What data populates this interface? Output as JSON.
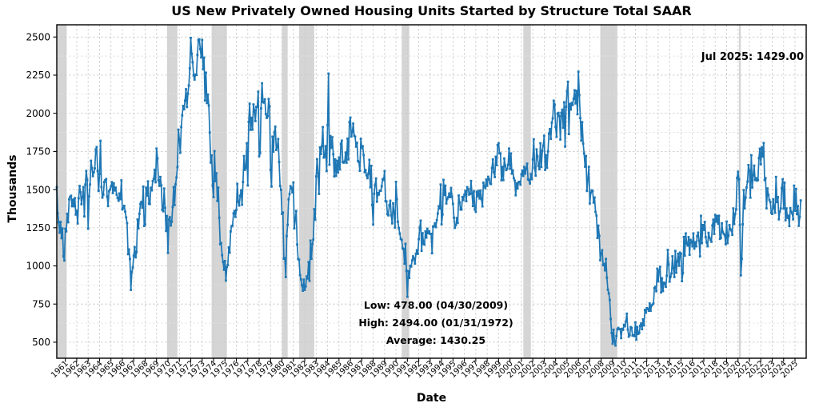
{
  "chart_data": {
    "type": "line",
    "title": "US New Privately Owned Housing Units Started by Structure Total SAAR",
    "xlabel": "Date",
    "ylabel": "Thousands",
    "line_color": "#1f77b4",
    "marker": "square",
    "recession_color": "#d5d5d5",
    "grid": {
      "major_color": "#cccccc",
      "minor_color": "#e2e2e2",
      "horizontal_step": 125,
      "vertical_step_years": 1
    },
    "x_range": [
      1960.25,
      2025.98
    ],
    "y_range": [
      395,
      2580
    ],
    "y_ticks": [
      500,
      750,
      1000,
      1250,
      1500,
      1750,
      2000,
      2250,
      2500
    ],
    "x_tick_years": [
      1961,
      1962,
      1963,
      1964,
      1965,
      1966,
      1967,
      1968,
      1969,
      1970,
      1971,
      1972,
      1973,
      1974,
      1975,
      1976,
      1977,
      1978,
      1979,
      1980,
      1981,
      1982,
      1983,
      1984,
      1985,
      1986,
      1987,
      1988,
      1989,
      1990,
      1991,
      1992,
      1993,
      1994,
      1995,
      1996,
      1997,
      1998,
      1999,
      2000,
      2001,
      2002,
      2003,
      2004,
      2005,
      2006,
      2007,
      2008,
      2009,
      2010,
      2011,
      2012,
      2013,
      2014,
      2015,
      2016,
      2017,
      2018,
      2019,
      2020,
      2021,
      2022,
      2023,
      2024,
      2025
    ],
    "recessions": [
      [
        1960.25,
        1961.12
      ],
      [
        1969.92,
        1970.83
      ],
      [
        1973.83,
        1975.17
      ],
      [
        1980.0,
        1980.5
      ],
      [
        1981.5,
        1982.83
      ],
      [
        1990.5,
        1991.17
      ],
      [
        2001.17,
        2001.83
      ],
      [
        2007.92,
        2009.42
      ],
      [
        2020.08,
        2020.25
      ]
    ],
    "series_start": {
      "year": 1960,
      "month": 4
    },
    "series_end": {
      "year": 2025,
      "month": 7
    },
    "values": [
      1516,
      1344,
      1286,
      1218,
      1288,
      1182,
      1246,
      1063,
      1035,
      1244,
      1226,
      1342,
      1286,
      1437,
      1452,
      1460,
      1391,
      1434,
      1391,
      1444,
      1336,
      1361,
      1278,
      1443,
      1524,
      1483,
      1404,
      1450,
      1517,
      1324,
      1533,
      1622,
      1564,
      1244,
      1456,
      1534,
      1689,
      1641,
      1588,
      1614,
      1639,
      1763,
      1779,
      1622,
      1491,
      1603,
      1820,
      1517,
      1448,
      1467,
      1550,
      1562,
      1569,
      1455,
      1392,
      1489,
      1500,
      1521,
      1549,
      1477,
      1541,
      1494,
      1513,
      1467,
      1445,
      1427,
      1475,
      1437,
      1561,
      1370,
      1378,
      1394,
      1356,
      1318,
      1280,
      1077,
      1108,
      1045,
      843,
      961,
      990,
      1067,
      1123,
      1056,
      1091,
      1304,
      1246,
      1341,
      1407,
      1420,
      1381,
      1520,
      1262,
      1271,
      1512,
      1460,
      1554,
      1408,
      1405,
      1512,
      1495,
      1556,
      1569,
      1630,
      1548,
      1769,
      1705,
      1561,
      1524,
      1583,
      1528,
      1368,
      1358,
      1507,
      1381,
      1229,
      1327,
      1085,
      1305,
      1319,
      1264,
      1290,
      1385,
      1517,
      1399,
      1534,
      1580,
      1647,
      1893,
      1828,
      1741,
      1910,
      1986,
      2049,
      2026,
      2083,
      2158,
      2041,
      2128,
      2182,
      2295,
      2494,
      2390,
      2334,
      2249,
      2221,
      2254,
      2252,
      2382,
      2481,
      2485,
      2421,
      2366,
      2481,
      2289,
      2365,
      2084,
      2266,
      2067,
      2123,
      2051,
      1874,
      1677,
      1724,
      1526,
      1451,
      1752,
      1555,
      1607,
      1426,
      1513,
      1316,
      1142,
      1150,
      1070,
      1026,
      975,
      1032,
      904,
      993,
      1005,
      1121,
      1087,
      1226,
      1260,
      1264,
      1344,
      1360,
      1321,
      1367,
      1538,
      1421,
      1395,
      1459,
      1495,
      1401,
      1550,
      1720,
      1629,
      1641,
      1804,
      1527,
      1943,
      2063,
      1892,
      1971,
      1893,
      2058,
      2020,
      1949,
      2042,
      2042,
      2142,
      1718,
      1738,
      2032,
      2197,
      2075,
      2070,
      2092,
      1996,
      1970,
      1981,
      2094,
      2044,
      1630,
      1520,
      1847,
      1748,
      1876,
      1913,
      1760,
      1778,
      1832,
      1681,
      1524,
      1498,
      1341,
      1350,
      1047,
      1051,
      927,
      1196,
      1269,
      1436,
      1471,
      1523,
      1510,
      1482,
      1547,
      1246,
      1306,
      1360,
      1140,
      1045,
      1041,
      940,
      911,
      873,
      837,
      910,
      843,
      866,
      931,
      917,
      1025,
      902,
      1166,
      1046,
      1144,
      1173,
      1372,
      1303,
      1586,
      1699,
      1606,
      1472,
      1776,
      1733,
      1785,
      1910,
      1710,
      1715,
      1785,
      1621,
      1923,
      2260,
      1663,
      1851,
      1774,
      1843,
      1732,
      1586,
      1698,
      1590,
      1689,
      1612,
      1711,
      1632,
      1800,
      1821,
      1680,
      1676,
      1684,
      1743,
      1676,
      1834,
      1698,
      1942,
      1972,
      1848,
      1876,
      1933,
      1854,
      1847,
      1782,
      1807,
      1687,
      1681,
      1623,
      1833,
      1774,
      1784,
      1726,
      1614,
      1628,
      1594,
      1575,
      1605,
      1695,
      1515,
      1656,
      1400,
      1271,
      1473,
      1532,
      1573,
      1421,
      1478,
      1467,
      1493,
      1492,
      1522,
      1569,
      1563,
      1621,
      1425,
      1422,
      1339,
      1331,
      1397,
      1427,
      1332,
      1279,
      1410,
      1351,
      1251,
      1551,
      1437,
      1289,
      1248,
      1212,
      1177,
      1171,
      1115,
      1110,
      1014,
      1145,
      969,
      798,
      965,
      921,
      1001,
      996,
      1036,
      1063,
      1049,
      1015,
      1079,
      1103,
      1079,
      1176,
      1250,
      1297,
      1099,
      1214,
      1145,
      1139,
      1226,
      1186,
      1244,
      1214,
      1227,
      1210,
      1210,
      1083,
      1258,
      1260,
      1280,
      1254,
      1300,
      1343,
      1392,
      1376,
      1533,
      1272,
      1337,
      1564,
      1465,
      1526,
      1409,
      1439,
      1450,
      1474,
      1450,
      1511,
      1455,
      1407,
      1316,
      1249,
      1267,
      1314,
      1281,
      1461,
      1416,
      1369,
      1369,
      1452,
      1431,
      1467,
      1491,
      1424,
      1516,
      1504,
      1467,
      1472,
      1557,
      1475,
      1392,
      1489,
      1370,
      1355,
      1486,
      1457,
      1492,
      1442,
      1494,
      1437,
      1390,
      1546,
      1520,
      1510,
      1566,
      1525,
      1584,
      1567,
      1540,
      1536,
      1641,
      1698,
      1614,
      1582,
      1715,
      1660,
      1792,
      1804,
      1738,
      1737,
      1561,
      1649,
      1562,
      1704,
      1657,
      1628,
      1636,
      1663,
      1769,
      1636,
      1737,
      1604,
      1626,
      1575,
      1559,
      1463,
      1541,
      1507,
      1549,
      1551,
      1532,
      1600,
      1625,
      1590,
      1649,
      1605,
      1636,
      1670,
      1567,
      1562,
      1540,
      1602,
      1568,
      1698,
      1829,
      1642,
      1592,
      1764,
      1717,
      1655,
      1633,
      1804,
      1648,
      1753,
      1788,
      1853,
      1629,
      1726,
      1643,
      1751,
      1867,
      1897,
      1833,
      1939,
      1967,
      2083,
      2057,
      1911,
      1846,
      1998,
      2003,
      1981,
      1828,
      2002,
      2024,
      1905,
      2072,
      1782,
      2042,
      2144,
      2207,
      1864,
      2061,
      2025,
      2068,
      2054,
      2095,
      2151,
      2065,
      2147,
      1994,
      2273,
      2119,
      1969,
      1821,
      1942,
      1802,
      1737,
      1650,
      1720,
      1491,
      1570,
      1649,
      1409,
      1480,
      1495,
      1490,
      1415,
      1448,
      1354,
      1330,
      1183,
      1264,
      1197,
      1037,
      1084,
      1103,
      1005,
      1013,
      971,
      1046,
      923,
      844,
      820,
      777,
      652,
      560,
      490,
      582,
      505,
      478,
      540,
      585,
      594,
      586,
      585,
      527,
      588,
      581,
      614,
      604,
      636,
      687,
      583,
      536,
      546,
      599,
      594,
      543,
      545,
      539,
      630,
      517,
      600,
      554,
      561,
      608,
      623,
      585,
      650,
      610,
      711,
      694,
      723,
      718,
      706,
      754,
      706,
      741,
      746,
      754,
      854,
      863,
      834,
      982,
      898,
      969,
      994,
      826,
      919,
      835,
      891,
      885,
      863,
      936,
      1105,
      1010,
      897,
      928,
      950,
      1063,
      984,
      927,
      1098,
      955,
      1028,
      1080,
      1001,
      1087,
      1080,
      900,
      954,
      1190,
      1067,
      1213,
      1147,
      1133,
      1189,
      1073,
      1171,
      1160,
      1128,
      1213,
      1113,
      1155,
      1128,
      1195,
      1218,
      1164,
      1062,
      1328,
      1149,
      1268,
      1236,
      1288,
      1189,
      1154,
      1129,
      1217,
      1185,
      1172,
      1158,
      1265,
      1303,
      1210,
      1334,
      1290,
      1327,
      1276,
      1329,
      1177,
      1184,
      1279,
      1221,
      1211,
      1202,
      1142,
      1291,
      1149,
      1199,
      1267,
      1241,
      1233,
      1204,
      1377,
      1274,
      1340,
      1371,
      1576,
      1617,
      1567,
      1269,
      938,
      1046,
      1273,
      1497,
      1376,
      1448,
      1514,
      1553,
      1661,
      1625,
      1447,
      1725,
      1514,
      1594,
      1657,
      1562,
      1576,
      1559,
      1563,
      1706,
      1768,
      1666,
      1777,
      1716,
      1805,
      1562,
      1575,
      1377,
      1508,
      1465,
      1432,
      1419,
      1348,
      1340,
      1436,
      1380,
      1348,
      1583,
      1418,
      1451,
      1305,
      1356,
      1376,
      1510,
      1568,
      1376,
      1546,
      1299,
      1377,
      1315,
      1329,
      1262,
      1379,
      1355,
      1344,
      1305,
      1526,
      1361,
      1505,
      1339,
      1392,
      1263,
      1321,
      1429
    ],
    "annotations": {
      "latest": "Jul 2025: 1429.00",
      "low": "Low: 478.00 (04/30/2009)",
      "high": "High: 2494.00 (01/31/1972)",
      "average": "Average: 1430.25"
    }
  }
}
